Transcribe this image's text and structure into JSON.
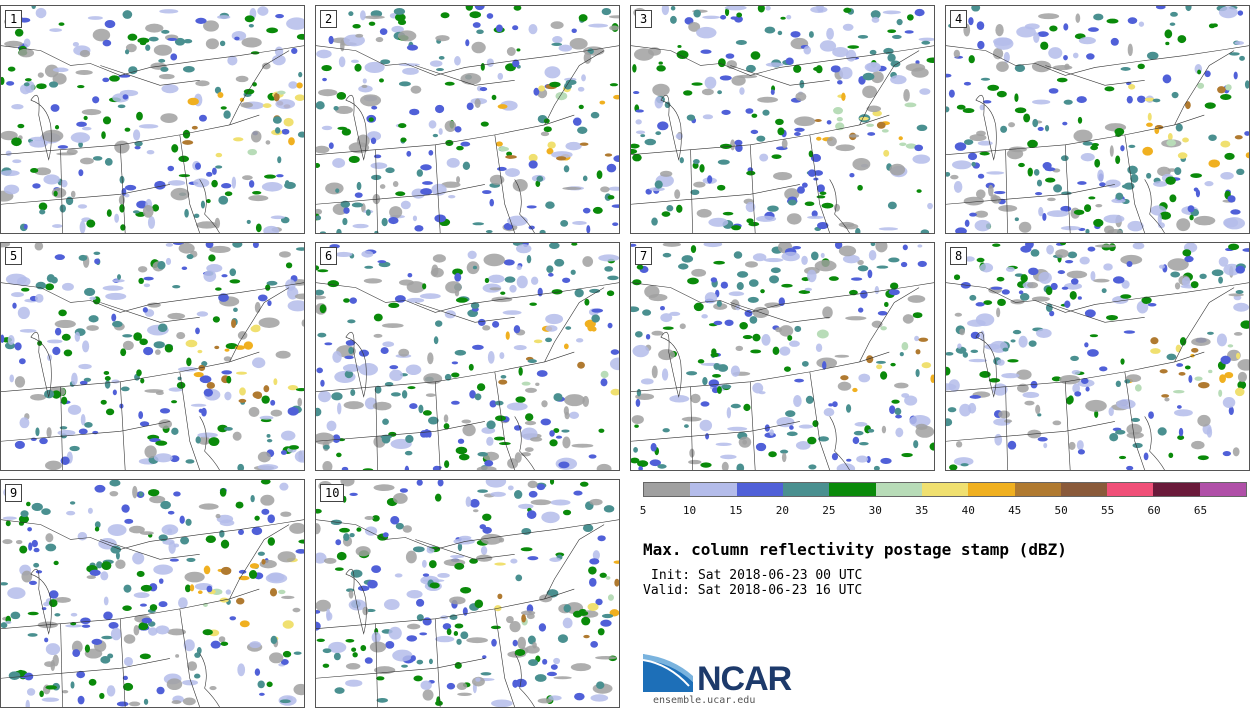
{
  "figure": {
    "title": "Max. column reflectivity postage stamp (dBZ)",
    "init": "Init: Sat 2018-06-23 00 UTC",
    "valid": "Valid: Sat 2018-06-23 16 UTC"
  },
  "members": [
    "1",
    "2",
    "3",
    "4",
    "5",
    "6",
    "7",
    "8",
    "9",
    "10"
  ],
  "colorbar": {
    "ticks": [
      "5",
      "10",
      "15",
      "20",
      "25",
      "30",
      "35",
      "40",
      "45",
      "50",
      "55",
      "60",
      "65"
    ],
    "colors": [
      "#a0a0a0",
      "#b4bcea",
      "#5060d8",
      "#4a9090",
      "#0a8a0a",
      "#b8dcb8",
      "#f0e070",
      "#f0b020",
      "#b07a30",
      "#8a5a3a",
      "#f05078",
      "#6a1a3a",
      "#b050a8"
    ]
  },
  "logo": {
    "name": "NCAR",
    "url": "ensemble.ucar.edu"
  }
}
